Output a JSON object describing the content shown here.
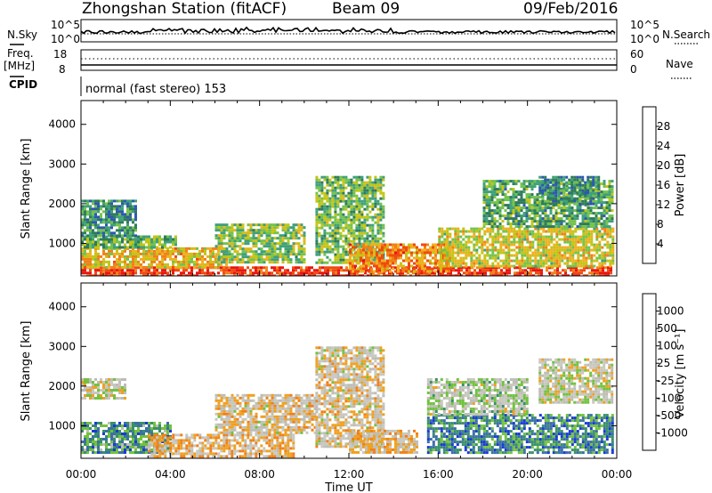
{
  "header": {
    "station": "Zhongshan Station (fitACF)",
    "beam": "Beam 09",
    "date": "09/Feb/2016"
  },
  "top_panels": {
    "nsky_label": "N.Sky",
    "nsearch_label": "N.Search",
    "noise_left_ticks": [
      "10^5",
      "10^0"
    ],
    "noise_right_ticks": [
      "10^5",
      "10^0"
    ],
    "freq_label": "Freq.",
    "freq_unit": "[MHz]",
    "freq_ticks": [
      "18",
      "8"
    ],
    "nave_label": "Nave",
    "nave_ticks": [
      "60",
      "0"
    ],
    "cpid_label": "CPID",
    "cpid_text": "normal (fast stereo) 153"
  },
  "colors": {
    "white": "#ffffff",
    "black": "#000000",
    "power_scale": [
      "#1f3cf5",
      "#2b58b0",
      "#2f7a5a",
      "#3fa07a",
      "#74c24a",
      "#c4c414",
      "#f0b020",
      "#f08018",
      "#f04a10",
      "#e81510"
    ],
    "velocity_scale": [
      "#e81510",
      "#f04a10",
      "#f08018",
      "#f0a020",
      "#c8c8c0",
      "#bdbdb5",
      "#72c23e",
      "#3a9068",
      "#3b6fa8",
      "#1a3ad6"
    ]
  },
  "chart_data": [
    {
      "type": "heatmap",
      "name": "power",
      "xlabel": "Time UT",
      "ylabel": "Slant Range [km]",
      "x_ticks": [
        "00:00",
        "04:00",
        "08:00",
        "12:00",
        "16:00",
        "20:00",
        "00:00"
      ],
      "y_ticks": [
        1000,
        2000,
        3000,
        4000
      ],
      "ylim": [
        180,
        4600
      ],
      "colorbar": {
        "label": "Power [dB]",
        "ticks": [
          "4",
          "8",
          "12",
          "16",
          "20",
          "24",
          "28"
        ],
        "range": [
          0,
          30
        ]
      },
      "regions": [
        {
          "t0": 0.0,
          "t1": 23.8,
          "r0": 200,
          "r1": 420,
          "level": 27
        },
        {
          "t0": 0.0,
          "t1": 6.5,
          "r0": 420,
          "r1": 900,
          "level": 19
        },
        {
          "t0": 0.0,
          "t1": 4.2,
          "r0": 900,
          "r1": 1200,
          "level": 12
        },
        {
          "t0": 0.0,
          "t1": 2.5,
          "r0": 1200,
          "r1": 2100,
          "level": 9
        },
        {
          "t0": 6.0,
          "t1": 10.0,
          "r0": 500,
          "r1": 1500,
          "level": 14
        },
        {
          "t0": 10.5,
          "t1": 13.5,
          "r0": 500,
          "r1": 2700,
          "level": 13
        },
        {
          "t0": 12.0,
          "t1": 16.5,
          "r0": 300,
          "r1": 1000,
          "level": 22
        },
        {
          "t0": 16.0,
          "t1": 23.8,
          "r0": 400,
          "r1": 1400,
          "level": 17
        },
        {
          "t0": 18.0,
          "t1": 23.8,
          "r0": 1400,
          "r1": 2600,
          "level": 11
        },
        {
          "t0": 20.5,
          "t1": 23.2,
          "r0": 2000,
          "r1": 2700,
          "level": 9
        }
      ]
    },
    {
      "type": "heatmap",
      "name": "velocity",
      "xlabel": "Time UT",
      "ylabel": "Slant Range [km]",
      "x_ticks": [
        "00:00",
        "04:00",
        "08:00",
        "12:00",
        "16:00",
        "20:00",
        "00:00"
      ],
      "y_ticks": [
        1000,
        2000,
        3000,
        4000
      ],
      "ylim": [
        180,
        4600
      ],
      "colorbar": {
        "label": "Velocity [m s⁻¹]",
        "ticks": [
          "-1000",
          "-500",
          "-100",
          "-25",
          "25",
          "100",
          "500",
          "1000"
        ],
        "range": [
          -1200,
          1200
        ]
      },
      "regions": [
        {
          "t0": 0.0,
          "t1": 4.0,
          "r0": 300,
          "r1": 1100,
          "level": 600
        },
        {
          "t0": 0.0,
          "t1": 2.0,
          "r0": 1700,
          "r1": 2200,
          "level": 10
        },
        {
          "t0": 3.0,
          "t1": 9.5,
          "r0": 200,
          "r1": 800,
          "level": -300
        },
        {
          "t0": 6.0,
          "t1": 10.5,
          "r0": 800,
          "r1": 1800,
          "level": -150
        },
        {
          "t0": 10.5,
          "t1": 13.5,
          "r0": 500,
          "r1": 3000,
          "level": -120
        },
        {
          "t0": 12.0,
          "t1": 15.0,
          "r0": 300,
          "r1": 900,
          "level": -200
        },
        {
          "t0": 15.5,
          "t1": 23.8,
          "r0": 300,
          "r1": 1300,
          "level": 700
        },
        {
          "t0": 15.5,
          "t1": 20.0,
          "r0": 1300,
          "r1": 2200,
          "level": 150
        },
        {
          "t0": 20.5,
          "t1": 23.8,
          "r0": 1600,
          "r1": 2700,
          "level": 10
        }
      ]
    }
  ]
}
